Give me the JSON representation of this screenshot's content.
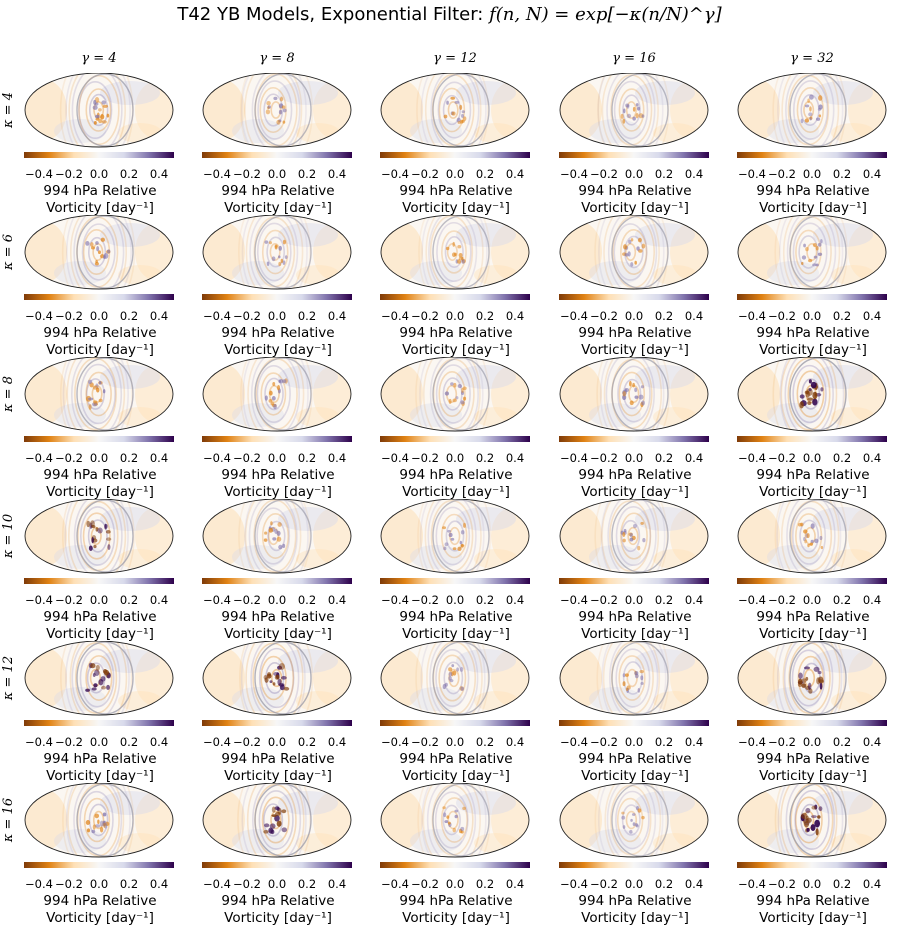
{
  "title": {
    "prefix": "T42 YB Models, Exponential Filter: ",
    "formula": "f(n, N) = exp[−κ(n/N)^γ]"
  },
  "colormap": {
    "name": "PuOr",
    "stops": [
      "#7f3b08",
      "#e08214",
      "#fee0b6",
      "#f7f7f7",
      "#d8daeb",
      "#8073ac",
      "#2d004b"
    ]
  },
  "chart_data": {
    "type": "heatmap",
    "projection": "mollweide",
    "variable": "994 hPa Relative Vorticity",
    "columns": [
      "γ = 4",
      "γ = 8",
      "γ = 12",
      "γ = 16",
      "γ = 32"
    ],
    "rows": [
      "κ = 4",
      "κ = 6",
      "κ = 8",
      "κ = 10",
      "κ = 12",
      "κ = 16"
    ],
    "gamma_values": [
      4,
      8,
      12,
      16,
      32
    ],
    "kappa_values": [
      4,
      6,
      8,
      10,
      12,
      16
    ],
    "colorbar": {
      "range": [
        -0.5,
        0.5
      ],
      "ticks": [
        -0.4,
        -0.2,
        0.0,
        0.2,
        0.4
      ],
      "tick_labels": [
        "−0.4",
        "−0.2",
        "0.0",
        "0.2",
        "0.4"
      ],
      "label_line1": "994 hPa Relative",
      "label_line2": "Vorticity [day⁻¹]"
    },
    "panel_intensity": [
      [
        0.7,
        0.5,
        0.55,
        0.5,
        0.55
      ],
      [
        0.6,
        0.45,
        0.4,
        0.5,
        0.45
      ],
      [
        0.65,
        0.55,
        0.5,
        0.6,
        0.95
      ],
      [
        0.75,
        0.5,
        0.45,
        0.5,
        0.55
      ],
      [
        0.75,
        0.85,
        0.5,
        0.45,
        0.9
      ],
      [
        0.7,
        0.8,
        0.45,
        0.4,
        0.95
      ]
    ]
  }
}
